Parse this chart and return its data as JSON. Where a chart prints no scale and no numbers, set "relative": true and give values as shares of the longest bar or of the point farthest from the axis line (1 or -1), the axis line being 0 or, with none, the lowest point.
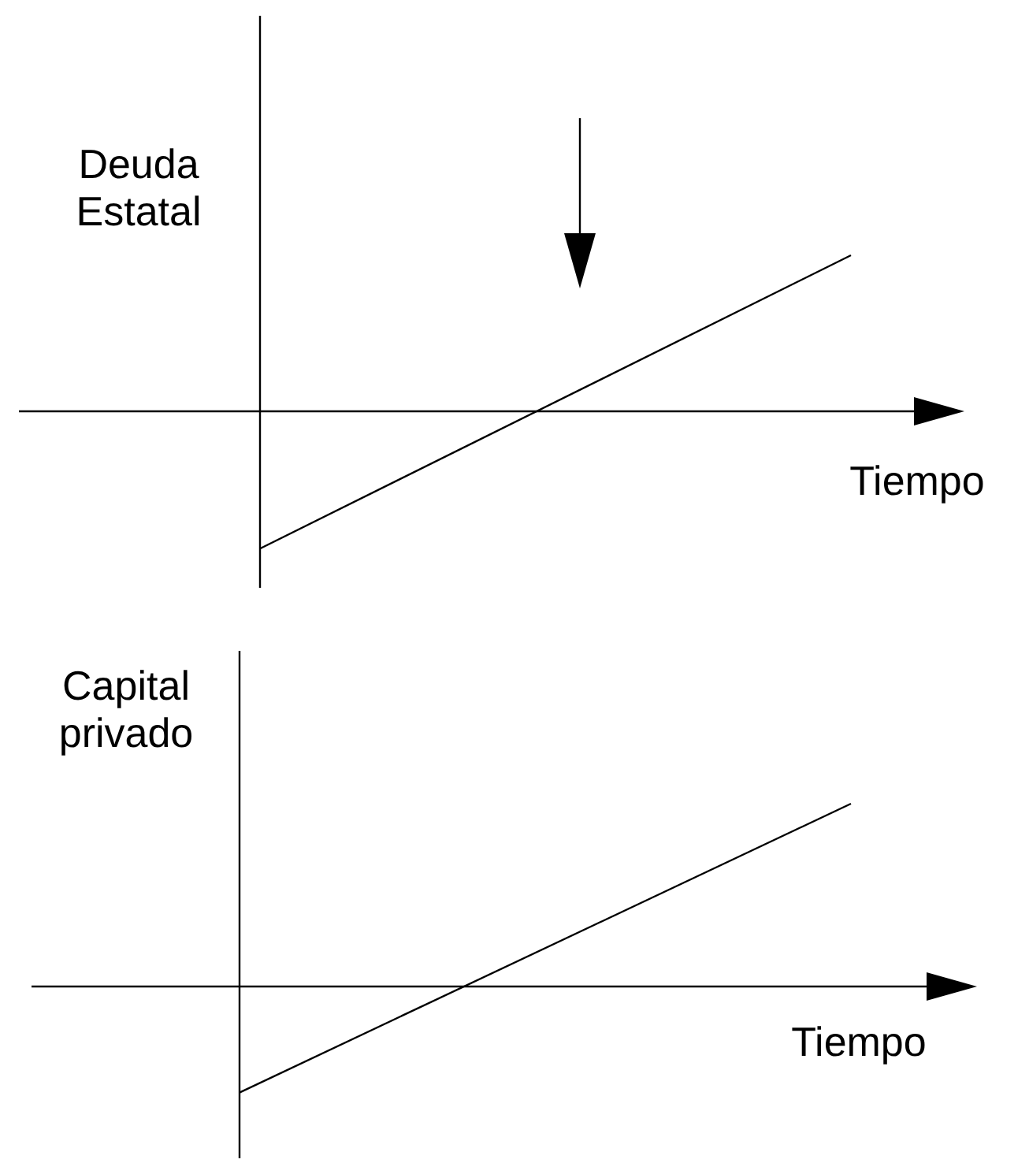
{
  "chart_data": [
    {
      "type": "line",
      "relative": true,
      "ylabel": "Deuda\nEstatal",
      "xlabel": "Tiempo",
      "categories": [
        null,
        null
      ],
      "series": [
        {
          "color": "#000000",
          "values": [
            -0.88,
            1
          ]
        }
      ]
    },
    {
      "type": "line",
      "relative": true,
      "ylabel": "Capital\nprivado",
      "xlabel": "Tiempo",
      "categories": [
        null,
        null
      ],
      "series": [
        {
          "color": "#000000",
          "values": [
            -0.58,
            1
          ]
        }
      ]
    }
  ]
}
